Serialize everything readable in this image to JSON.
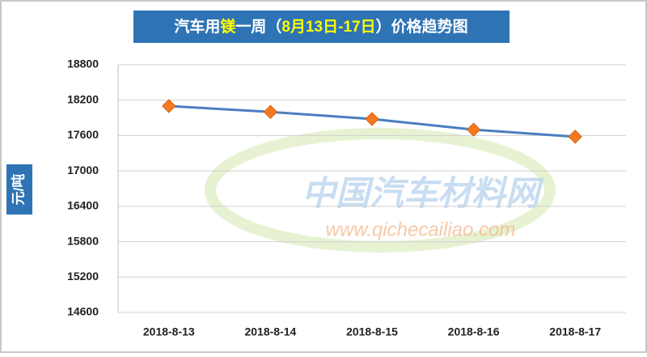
{
  "chart_data": {
    "type": "line",
    "title": [
      {
        "text": "汽车用",
        "color": "#ffffff"
      },
      {
        "text": "镁",
        "color": "#ffff00"
      },
      {
        "text": "一周（",
        "color": "#ffffff"
      },
      {
        "text": "8月13日-17日",
        "color": "#ffff00"
      },
      {
        "text": "）价格趋势图",
        "color": "#ffffff"
      }
    ],
    "y_label": "元/吨",
    "watermark": [
      "中国汽车材料网",
      "www.qichecailiao.com"
    ],
    "categories": [
      "2018-8-13",
      "2018-8-14",
      "2018-8-15",
      "2018-8-16",
      "2018-8-17"
    ],
    "series": [
      {
        "name": "镁",
        "color": "#4a7ebf",
        "marker_color": "#f57a1f",
        "values": [
          18100,
          18000,
          17880,
          17700,
          17580
        ]
      }
    ],
    "ylim": [
      14600,
      18800
    ],
    "yticks": [
      14600,
      15200,
      15800,
      16400,
      17000,
      17600,
      18200,
      18800
    ],
    "grid": true
  }
}
